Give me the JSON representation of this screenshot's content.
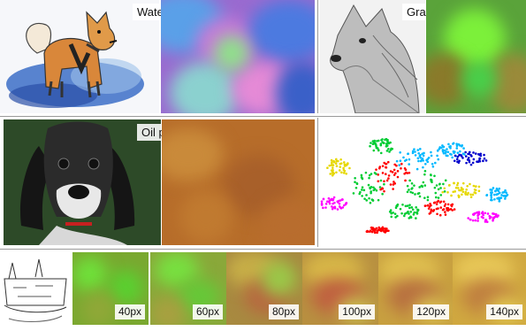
{
  "panels": {
    "watercolor": {
      "label": "Watercolor"
    },
    "graphite": {
      "label": "Graphite"
    },
    "oil": {
      "label": "Oil paint"
    }
  },
  "scales": [
    {
      "label": "40px"
    },
    {
      "label": "60px"
    },
    {
      "label": "80px"
    },
    {
      "label": "100px"
    },
    {
      "label": "120px"
    },
    {
      "label": "140px"
    }
  ],
  "tsne_colors": [
    "#e6d800",
    "#ff00ff",
    "#00cc33",
    "#ff0000",
    "#00b8ff",
    "#0000cc"
  ]
}
